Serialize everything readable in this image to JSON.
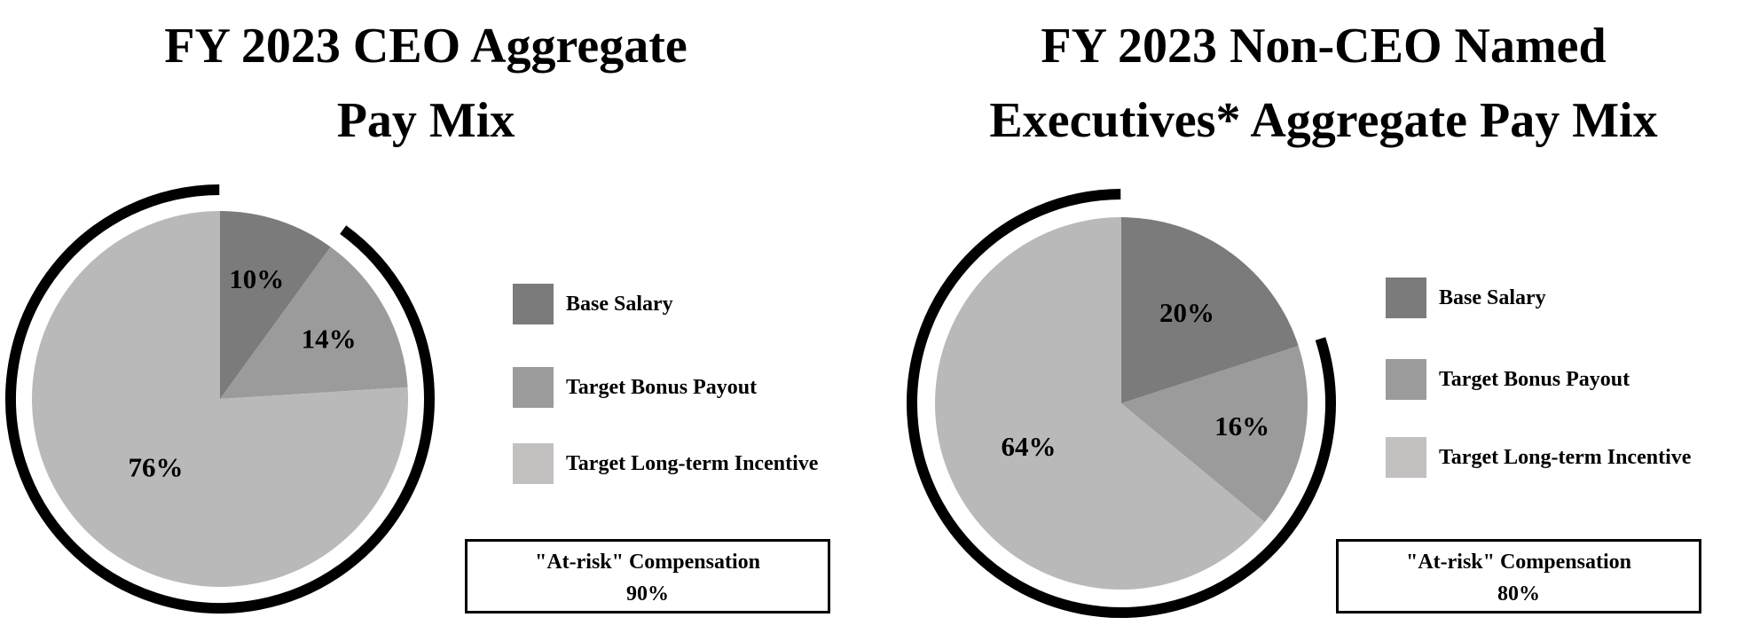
{
  "colors": {
    "base_salary": "#7b7b7b",
    "target_bonus": "#9b9b9b",
    "long_term_incentive": "#b9b9b9",
    "legend_long_term_incentive": "#c3c0c0",
    "risk_arc": "#000000"
  },
  "chart_data": [
    {
      "type": "pie",
      "title": "FY 2023 CEO Aggregate Pay Mix",
      "title_lines": [
        "FY 2023 CEO Aggregate",
        "Pay Mix"
      ],
      "slices": [
        {
          "label": "Base Salary",
          "value": 10,
          "display": "10%"
        },
        {
          "label": "Target Bonus Payout",
          "value": 14,
          "display": "14%"
        },
        {
          "label": "Target Long-term Incentive",
          "value": 76,
          "display": "76%"
        }
      ],
      "legend": [
        "Base Salary",
        "Target Bonus Payout",
        "Target Long-term Incentive"
      ],
      "legend_position": "right",
      "annotation": {
        "label": "\"At-risk\" Compensation",
        "value": "90%"
      }
    },
    {
      "type": "pie",
      "title": "FY 2023 Non-CEO Named Executives* Aggregate Pay Mix",
      "title_lines": [
        "FY 2023 Non-CEO Named",
        "Executives* Aggregate Pay Mix"
      ],
      "slices": [
        {
          "label": "Base Salary",
          "value": 20,
          "display": "20%"
        },
        {
          "label": "Target Bonus Payout",
          "value": 16,
          "display": "16%"
        },
        {
          "label": "Target Long-term Incentive",
          "value": 64,
          "display": "64%"
        }
      ],
      "legend": [
        "Base Salary",
        "Target Bonus Payout",
        "Target Long-term Incentive"
      ],
      "legend_position": "right",
      "annotation": {
        "label": "\"At-risk\" Compensation",
        "value": "80%"
      }
    }
  ]
}
